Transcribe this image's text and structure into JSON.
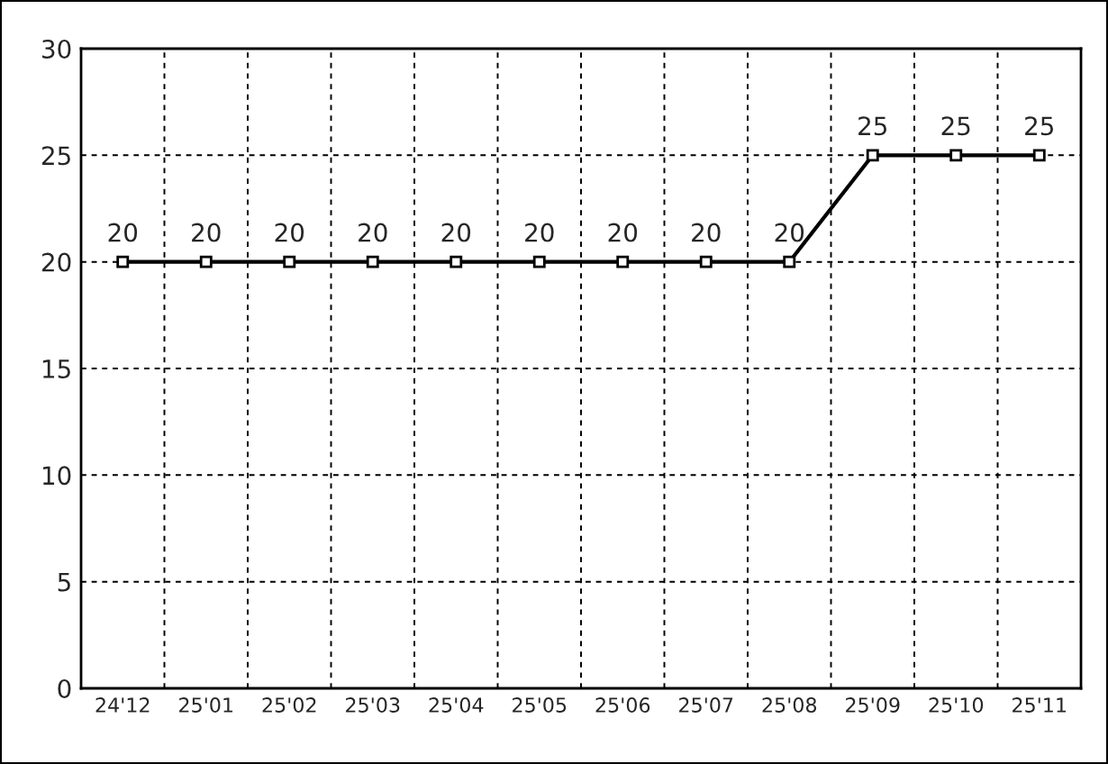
{
  "chart_data": {
    "type": "line",
    "categories": [
      "24'12",
      "25'01",
      "25'02",
      "25'03",
      "25'04",
      "25'05",
      "25'06",
      "25'07",
      "25'08",
      "25'09",
      "25'10",
      "25'11"
    ],
    "series": [
      {
        "color": "#000000",
        "values": [
          20,
          20,
          20,
          20,
          20,
          20,
          20,
          20,
          20,
          25,
          25,
          25
        ]
      }
    ],
    "ylim": [
      0,
      30
    ],
    "yticks": [
      0,
      5,
      10,
      15,
      20,
      25,
      30
    ],
    "grid": true,
    "marker": "square",
    "line_style": "solid",
    "data_labels": true
  }
}
